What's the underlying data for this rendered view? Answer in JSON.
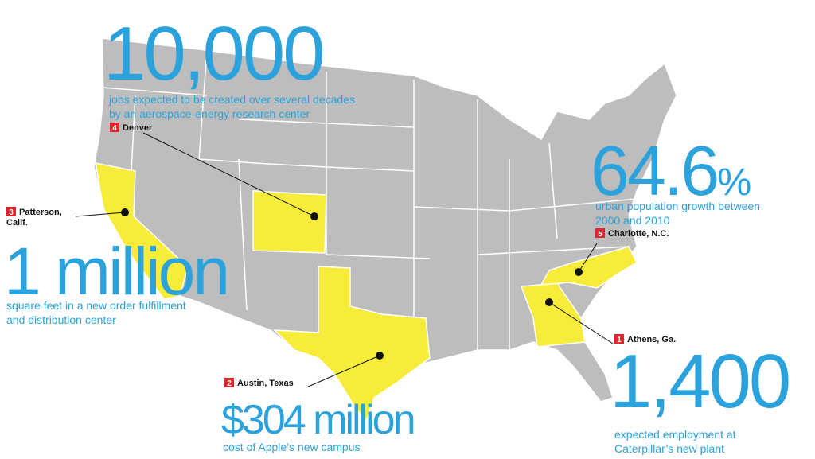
{
  "callouts": [
    {
      "rank": "4",
      "place_lines": [
        "Denver"
      ],
      "stat": "10,000",
      "caption_lines": [
        "jobs expected to be created over several decades",
        "by an aerospace-energy research center"
      ]
    },
    {
      "rank": "3",
      "place_lines": [
        "Patterson,",
        "Calif."
      ],
      "stat": "1 million",
      "caption_lines": [
        "square feet in a new order fulfillment",
        "and distribution center"
      ]
    },
    {
      "rank": "2",
      "place_lines": [
        "Austin, Texas"
      ],
      "stat": "$304 million",
      "caption_lines": [
        "cost of Apple’s new campus"
      ]
    },
    {
      "rank": "5",
      "place_lines": [
        "Charlotte, N.C."
      ],
      "stat": "64.6",
      "stat_unit": "%",
      "caption_lines": [
        "urban population growth between",
        "2000 and 2010"
      ]
    },
    {
      "rank": "1",
      "place_lines": [
        "Athens, Ga."
      ],
      "stat": "1,400",
      "caption_lines": [
        "expected employment at",
        "Caterpillar’s new plant"
      ]
    }
  ]
}
